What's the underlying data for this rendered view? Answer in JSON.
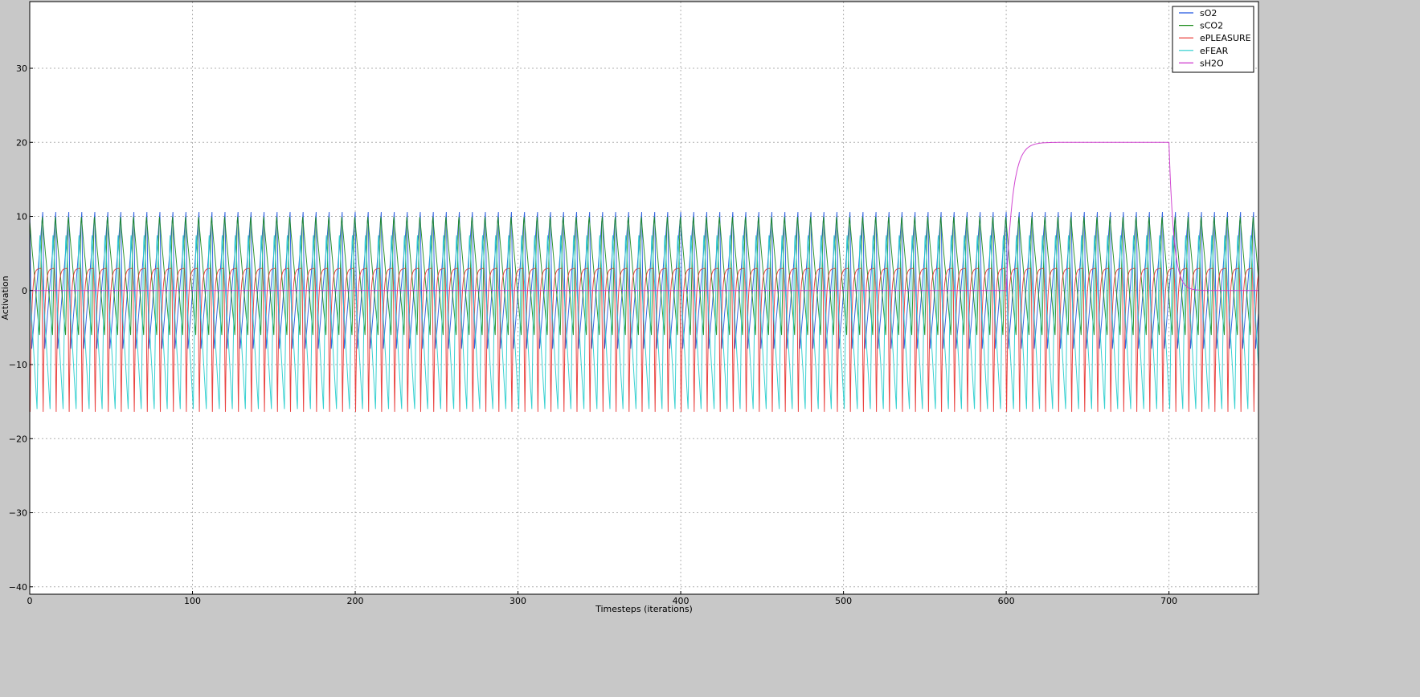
{
  "chart_data": {
    "type": "line",
    "title": "",
    "xlabel": "Timesteps (iterations)",
    "ylabel": "Activation",
    "xlim": [
      0,
      755
    ],
    "ylim": [
      -41,
      39
    ],
    "xticks": [
      0,
      100,
      200,
      300,
      400,
      500,
      600,
      700
    ],
    "yticks": [
      -40,
      -30,
      -20,
      -10,
      0,
      10,
      20,
      30
    ],
    "ytick_labels": [
      "−40",
      "−30",
      "−20",
      "−10",
      "0",
      "10",
      "20",
      "30"
    ],
    "grid": true,
    "legend_position": "top-right",
    "period_iterations": 8,
    "series": [
      {
        "name": "sO2",
        "color": "#1f55e0",
        "min": -8,
        "max": 10.6,
        "x_start": 0,
        "x_end": 755
      },
      {
        "name": "sCO2",
        "color": "#1a8a1a",
        "min": -6,
        "max": 10.3,
        "x_start": 0,
        "x_end": 755
      },
      {
        "name": "ePLEASURE",
        "color": "#e8302c",
        "min": -17.5,
        "max": 3.0,
        "x_start": 0,
        "x_end": 755
      },
      {
        "name": "eFEAR",
        "color": "#22cccc",
        "min": -16,
        "max": 8,
        "x_start": 0,
        "x_end": 755
      },
      {
        "name": "sH2O",
        "color": "#cc33cc",
        "baseline": 0,
        "plateau": 20,
        "rise_x": 600,
        "plateau_x": [
          615,
          700
        ],
        "fall_x": 700,
        "settle_x": 720,
        "x_start": 0,
        "x_end": 755
      }
    ]
  }
}
